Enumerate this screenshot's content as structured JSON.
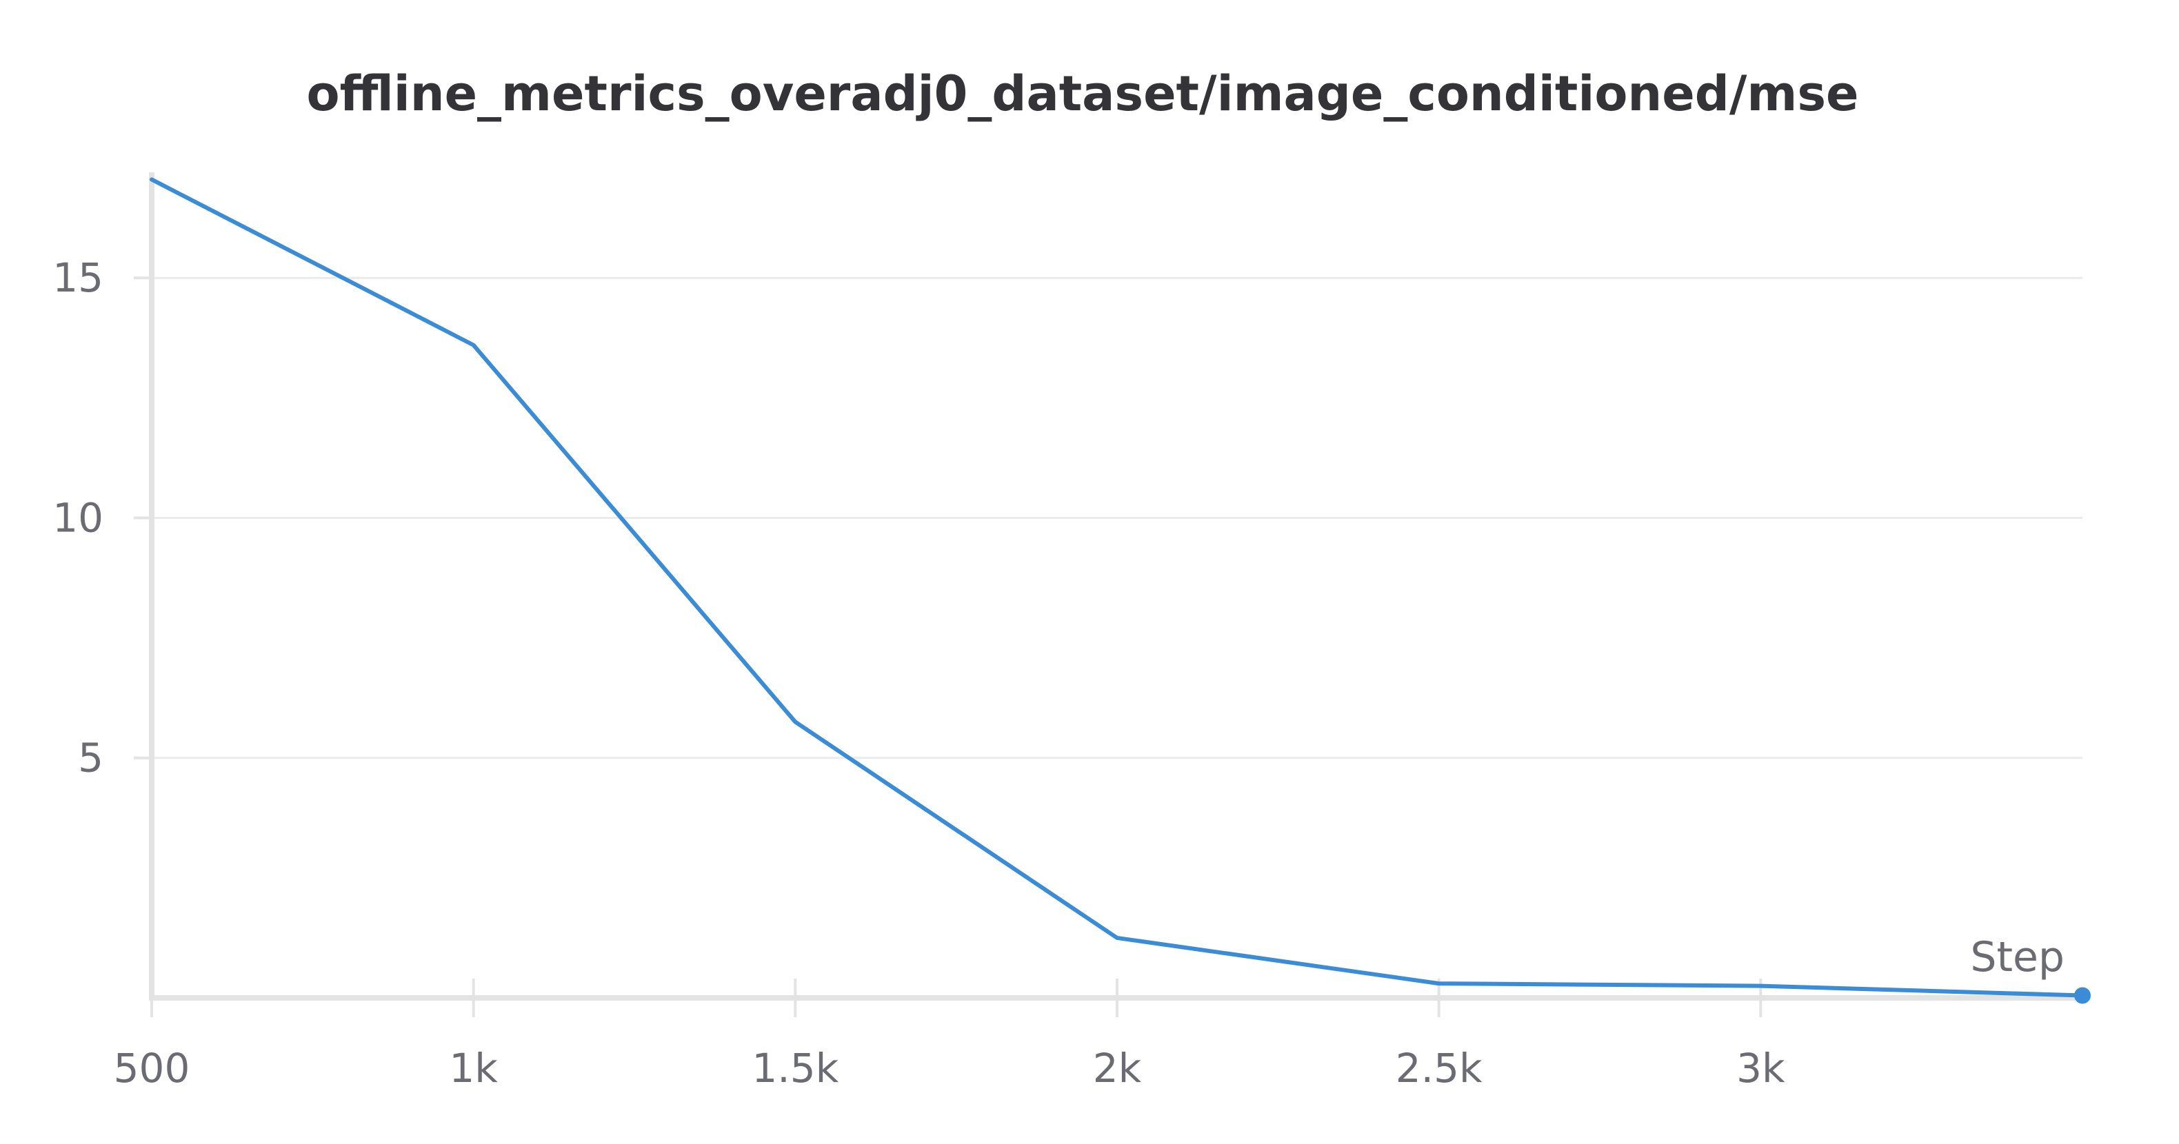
{
  "chart_data": {
    "type": "line",
    "title": "offline_metrics_overadj0_dataset/image_conditioned/mse",
    "xlabel": "Step",
    "ylabel": "",
    "xlim": [
      500,
      3500
    ],
    "ylim": [
      0,
      17.2
    ],
    "x_ticks": [
      {
        "value": 500,
        "label": "500"
      },
      {
        "value": 1000,
        "label": "1k"
      },
      {
        "value": 1500,
        "label": "1.5k"
      },
      {
        "value": 2000,
        "label": "2k"
      },
      {
        "value": 2500,
        "label": "2.5k"
      },
      {
        "value": 3000,
        "label": "3k"
      }
    ],
    "y_ticks": [
      {
        "value": 5,
        "label": "5"
      },
      {
        "value": 10,
        "label": "10"
      },
      {
        "value": 15,
        "label": "15"
      }
    ],
    "grid": true,
    "legend": "none",
    "series": [
      {
        "color": "#3a8cd6",
        "x": [
          500,
          1000,
          1500,
          2000,
          2500,
          3000,
          3500
        ],
        "y": [
          17.05,
          13.6,
          5.75,
          1.25,
          0.3,
          0.25,
          0.05
        ]
      }
    ]
  }
}
